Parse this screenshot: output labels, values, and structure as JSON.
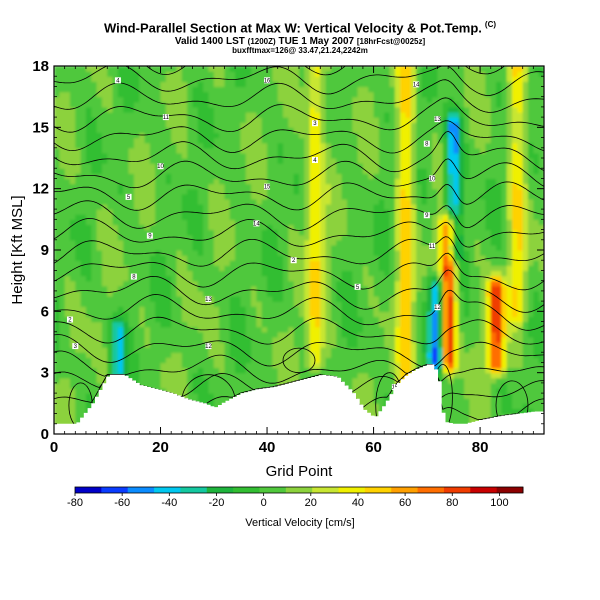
{
  "chart_data": {
    "type": "heatmap",
    "title": "Wind-Parallel Section at Max W: Vertical Velocity & Pot.Temp.",
    "title_mark": "(C)",
    "subtitle_main": "Valid 1400 LST",
    "subtitle_time": "(1200Z)",
    "subtitle_date": "TUE 1 May 2007",
    "subtitle_run": "[18hrFcst@0025z]",
    "subtitle2": "buxfftmax=126@ 33.47,21.24,2242m",
    "xlabel": "Grid Point",
    "ylabel": "Height [Kft MSL]",
    "xlim": [
      0,
      92
    ],
    "ylim": [
      0,
      18
    ],
    "x_ticks": [
      0,
      20,
      40,
      60,
      80
    ],
    "y_ticks": [
      0,
      3,
      6,
      9,
      12,
      15,
      18
    ],
    "colorbar": {
      "title": "Vertical Velocity [cm/s]",
      "min": -80,
      "max": 110,
      "tick_values": [
        -80,
        -60,
        -40,
        -20,
        0,
        20,
        40,
        60,
        80,
        100
      ],
      "colors": [
        "#0000c8",
        "#0a3cff",
        "#0a8cff",
        "#00c8f0",
        "#14c8a0",
        "#1eb43c",
        "#32be32",
        "#50c83c",
        "#8cd23c",
        "#c8e632",
        "#f0f000",
        "#ffd200",
        "#ffa000",
        "#ff6e00",
        "#f03c00",
        "#c80000",
        "#8c0000"
      ]
    },
    "updraft_cores": [
      {
        "x": 49,
        "height_range": [
          3.5,
          18
        ],
        "w": 40
      },
      {
        "x": 66,
        "height_range": [
          2.5,
          18
        ],
        "w": 40
      },
      {
        "x": 74,
        "height_range": [
          3.5,
          10
        ],
        "w": 90
      },
      {
        "x": 83,
        "height_range": [
          3.5,
          7
        ],
        "w": 80
      },
      {
        "x": 87,
        "height_range": [
          6,
          18
        ],
        "w": 35
      }
    ],
    "downdraft_cores": [
      {
        "x": 72,
        "height_range": [
          3.5,
          7
        ],
        "w": -70
      },
      {
        "x": 75,
        "height_range": [
          9,
          15
        ],
        "w": -55
      },
      {
        "x": 12,
        "height_range": [
          3,
          5
        ],
        "w": -35
      }
    ],
    "terrain_heights_kft": [
      [
        0,
        0.5
      ],
      [
        4,
        0.5
      ],
      [
        7,
        1.5
      ],
      [
        10,
        2.9
      ],
      [
        13,
        2.9
      ],
      [
        16,
        2.4
      ],
      [
        19,
        2.2
      ],
      [
        22,
        2.0
      ],
      [
        25,
        1.7
      ],
      [
        28,
        1.5
      ],
      [
        30,
        1.3
      ],
      [
        32,
        1.6
      ],
      [
        35,
        2.0
      ],
      [
        38,
        2.2
      ],
      [
        41,
        2.3
      ],
      [
        44,
        2.5
      ],
      [
        47,
        2.7
      ],
      [
        50,
        2.9
      ],
      [
        53,
        2.8
      ],
      [
        56,
        2.0
      ],
      [
        58,
        1.2
      ],
      [
        60,
        0.8
      ],
      [
        62,
        1.5
      ],
      [
        64,
        2.4
      ],
      [
        66,
        2.9
      ],
      [
        68,
        3.2
      ],
      [
        70,
        3.4
      ],
      [
        71,
        3.4
      ],
      [
        72,
        2.8
      ],
      [
        73,
        0.6
      ],
      [
        75,
        0.5
      ],
      [
        77,
        0.5
      ],
      [
        80,
        0.7
      ],
      [
        84,
        0.9
      ],
      [
        87,
        1.0
      ],
      [
        90,
        1.1
      ],
      [
        92,
        1.1
      ]
    ],
    "isentrope_labels": [
      "2",
      "3",
      "4",
      "5",
      "8",
      "9",
      "10",
      "11",
      "12",
      "13",
      "14",
      "15",
      "16"
    ]
  }
}
